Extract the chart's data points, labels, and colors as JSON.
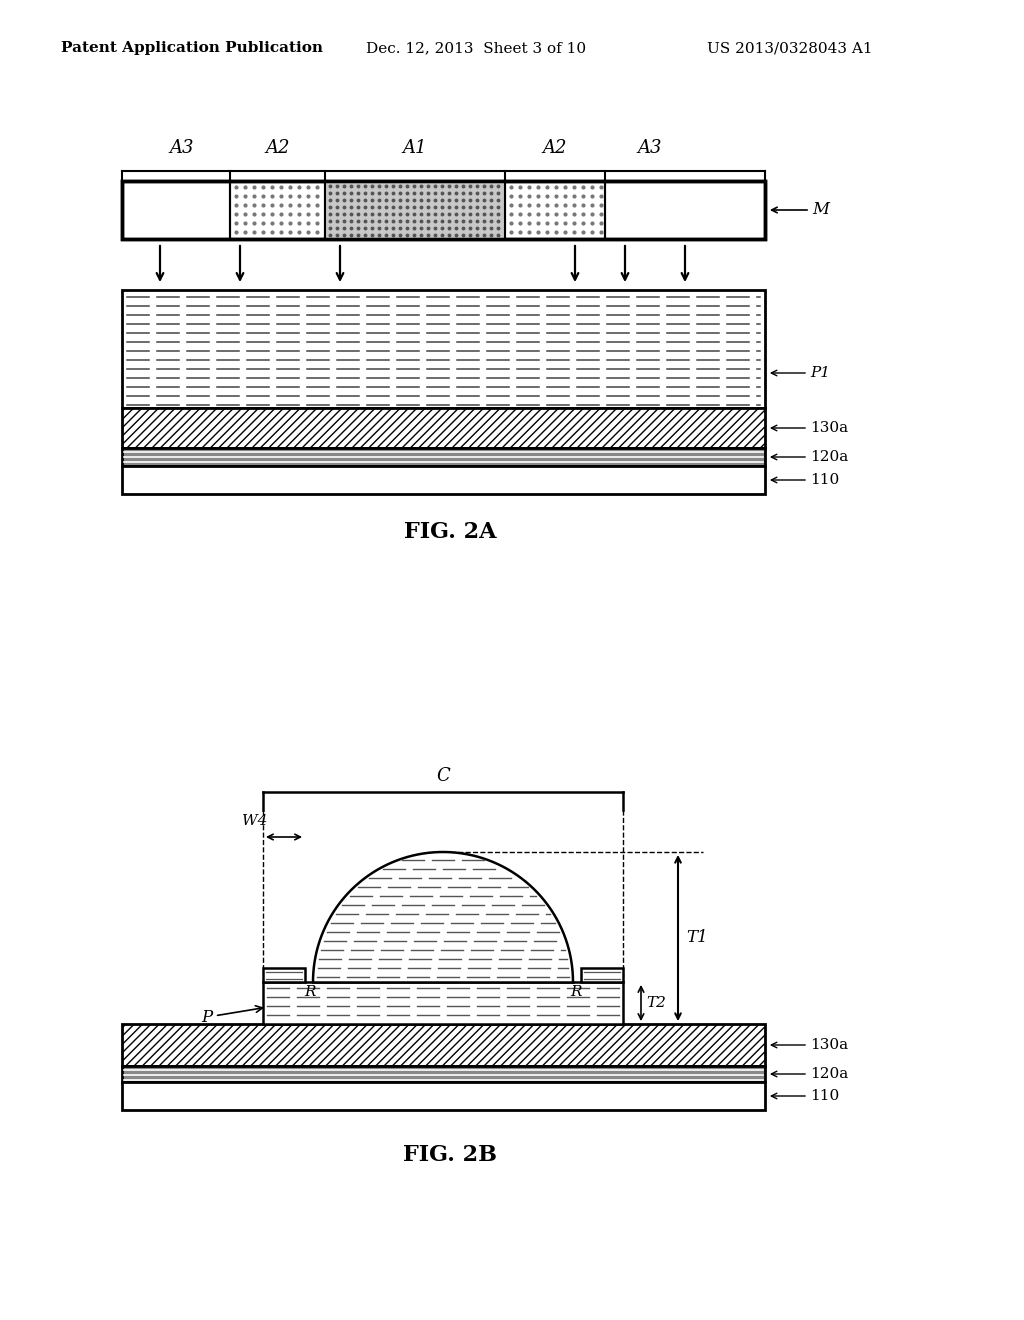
{
  "bg_color": "#ffffff",
  "line_color": "#000000",
  "header_left": "Patent Application Publication",
  "header_mid": "Dec. 12, 2013  Sheet 3 of 10",
  "header_right": "US 2013/0328043 A1",
  "fig2a_label": "FIG. 2A",
  "fig2b_label": "FIG. 2B",
  "region_labels": [
    "A3",
    "A2",
    "A1",
    "A2",
    "A3"
  ],
  "layer_labels_2a": [
    "P1",
    "130a",
    "120a",
    "110"
  ],
  "layer_labels_2b": [
    "130a",
    "120a",
    "110"
  ],
  "fig2b_annot": [
    "C",
    "W4",
    "R",
    "R",
    "T1",
    "T2",
    "P"
  ]
}
